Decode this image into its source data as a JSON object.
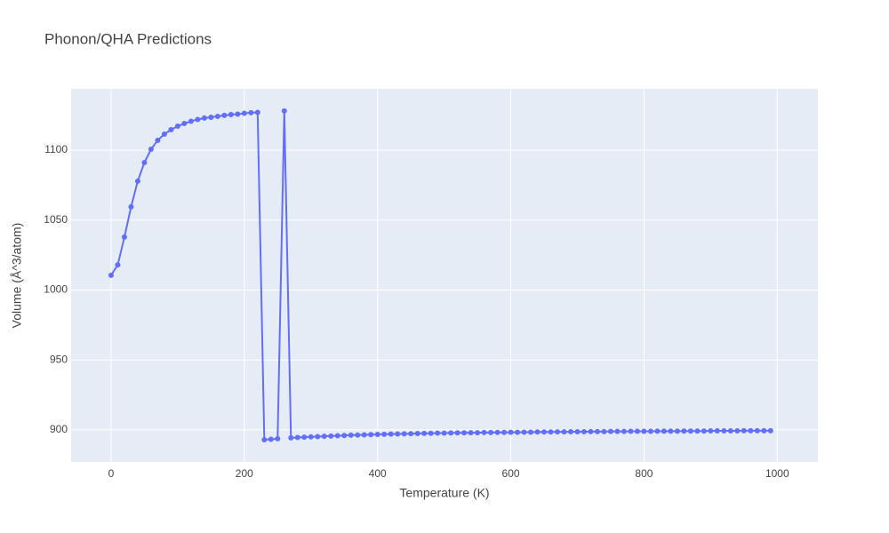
{
  "chart_data": {
    "type": "line",
    "title": "Phonon/QHA Predictions",
    "x_label": "Temperature (K)",
    "y_label": "Volume (Å^3/atom)",
    "x": [
      0,
      10,
      20,
      30,
      40,
      50,
      60,
      70,
      80,
      90,
      100,
      110,
      120,
      130,
      140,
      150,
      160,
      170,
      180,
      190,
      200,
      210,
      220,
      230,
      240,
      250,
      260,
      270,
      280,
      290,
      300,
      310,
      320,
      330,
      340,
      350,
      360,
      370,
      380,
      390,
      400,
      410,
      420,
      430,
      440,
      450,
      460,
      470,
      480,
      490,
      500,
      510,
      520,
      530,
      540,
      550,
      560,
      570,
      580,
      590,
      600,
      610,
      620,
      630,
      640,
      650,
      660,
      670,
      680,
      690,
      700,
      710,
      720,
      730,
      740,
      750,
      760,
      770,
      780,
      790,
      800,
      810,
      820,
      830,
      840,
      850,
      860,
      870,
      880,
      890,
      900,
      910,
      920,
      930,
      940,
      950,
      960,
      970,
      980,
      990
    ],
    "series": [
      {
        "color": "#636efa",
        "values": [
          1010.5,
          1018.0,
          1037.8,
          1059.4,
          1077.8,
          1091.1,
          1100.6,
          1107.0,
          1111.4,
          1114.6,
          1117.1,
          1119.0,
          1120.6,
          1121.9,
          1122.9,
          1123.5,
          1124.1,
          1124.8,
          1125.4,
          1125.7,
          1126.3,
          1126.7,
          1127.0,
          893.0,
          893.3,
          893.7,
          1128.0,
          894.3,
          894.6,
          894.8,
          895.0,
          895.2,
          895.4,
          895.6,
          895.8,
          896.0,
          896.2,
          896.3,
          896.5,
          896.6,
          896.8,
          896.9,
          897.0,
          897.1,
          897.2,
          897.3,
          897.4,
          897.5,
          897.6,
          897.7,
          897.7,
          897.8,
          897.9,
          897.9,
          898.0,
          898.0,
          898.1,
          898.1,
          898.2,
          898.2,
          898.3,
          898.3,
          898.4,
          898.4,
          898.5,
          898.5,
          898.5,
          898.6,
          898.6,
          898.7,
          898.7,
          898.7,
          898.8,
          898.8,
          898.8,
          898.9,
          898.9,
          898.9,
          899.0,
          899.0,
          899.0,
          899.0,
          899.1,
          899.1,
          899.1,
          899.1,
          899.2,
          899.2,
          899.2,
          899.2,
          899.3,
          899.3,
          899.3,
          899.3,
          899.3,
          899.4,
          899.4,
          899.4,
          899.4,
          899.4
        ]
      }
    ],
    "xlim": [
      -60,
      1061
    ],
    "ylim": [
      877.1,
      1143.8
    ],
    "xticks": [
      0,
      200,
      400,
      600,
      800,
      1000
    ],
    "yticks": [
      900,
      950,
      1000,
      1050,
      1100
    ],
    "grid": true,
    "background": "#e5ecf6"
  }
}
